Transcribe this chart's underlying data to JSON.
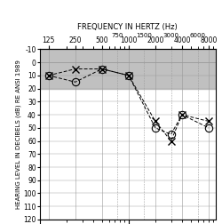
{
  "title": "FREQUENCY IN HERTZ (Hz)",
  "ylabel": "HEARING LEVEL IN DECIBELS (dB) RE ANSI 1989",
  "freq_major": [
    125,
    250,
    500,
    1000,
    2000,
    4000,
    8000
  ],
  "freq_minor": [
    750,
    1500,
    3000,
    6000
  ],
  "freq_all_log": [
    125,
    250,
    500,
    750,
    1000,
    1500,
    2000,
    3000,
    4000,
    6000,
    8000
  ],
  "ylim": [
    -10,
    120
  ],
  "yticks": [
    -10,
    0,
    10,
    20,
    30,
    40,
    50,
    60,
    70,
    80,
    90,
    100,
    110,
    120
  ],
  "shaded_region": [
    -10,
    20
  ],
  "right_ear_freqs": [
    125,
    250,
    500,
    1000,
    2000,
    3000,
    4000,
    8000
  ],
  "right_ear_vals": [
    10,
    15,
    5,
    10,
    50,
    55,
    40,
    50
  ],
  "left_ear_freqs": [
    125,
    250,
    500,
    1000,
    2000,
    3000,
    4000,
    8000
  ],
  "left_ear_vals": [
    10,
    5,
    5,
    10,
    45,
    60,
    40,
    45
  ],
  "normal_hearing_color": "#c0c0c0",
  "line_color": "#000000",
  "background_color": "#ffffff",
  "grid_color": "#999999",
  "dashed_freqs": [
    750,
    1500,
    3000,
    6000
  ],
  "xlim": [
    100,
    9500
  ],
  "title_fontsize": 6,
  "ylabel_fontsize": 5,
  "tick_fontsize_major": 5.5,
  "tick_fontsize_minor": 5
}
